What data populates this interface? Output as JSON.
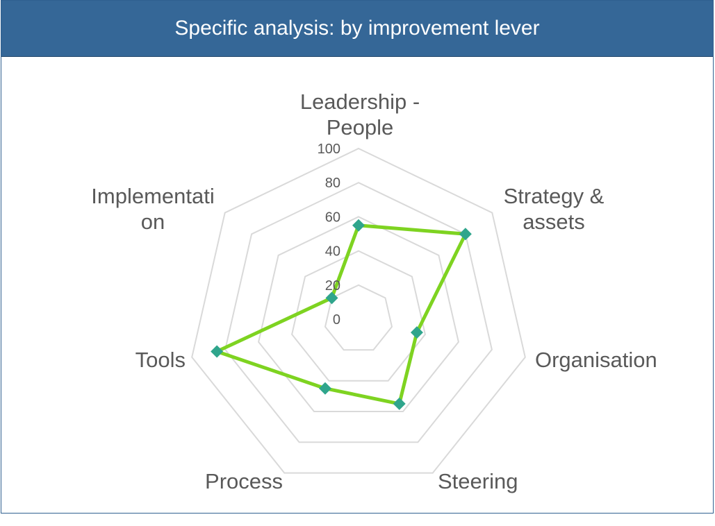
{
  "header": {
    "title": "Specific analysis: by improvement lever"
  },
  "chart_data": {
    "type": "radar",
    "title": "Specific analysis: by improvement lever",
    "categories": [
      [
        "Leadership -",
        "People"
      ],
      [
        "Strategy &",
        "assets"
      ],
      [
        "Organisation"
      ],
      [
        "Steering"
      ],
      [
        "Process"
      ],
      [
        "Tools"
      ],
      [
        "Implementati",
        "on"
      ]
    ],
    "series": [
      {
        "values": [
          55,
          80,
          35,
          55,
          45,
          85,
          20
        ]
      }
    ],
    "ticks": [
      "0",
      "20",
      "40",
      "60",
      "80",
      "100"
    ],
    "rmax": 100,
    "grid": true,
    "colors": {
      "line": "#7ed321",
      "marker": "#2fa58c",
      "grid": "#d9d9d9",
      "text": "#595959",
      "header": "#356797"
    }
  }
}
